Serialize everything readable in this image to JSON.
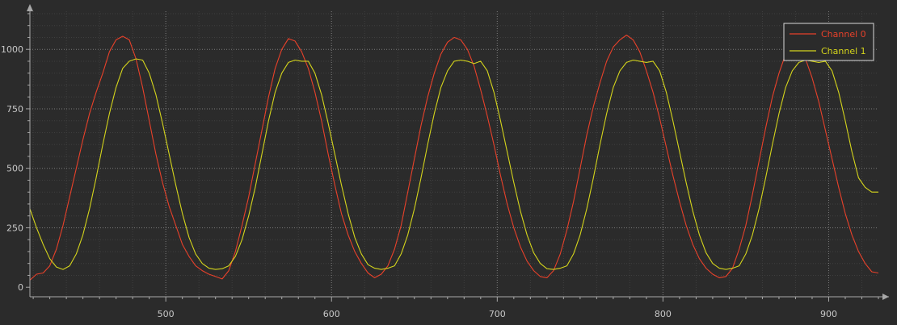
{
  "chart_data": {
    "type": "line",
    "title": "",
    "xlabel": "",
    "ylabel": "",
    "xlim": [
      418,
      930
    ],
    "ylim": [
      -40,
      1160
    ],
    "grid": true,
    "legend_position": "top-right",
    "x_ticks": [
      500,
      600,
      700,
      800,
      900
    ],
    "x_tick_labels": [
      "500",
      "600",
      "700",
      "800",
      "900"
    ],
    "y_ticks": [
      0,
      250,
      500,
      750,
      1000
    ],
    "y_tick_labels": [
      "0",
      "250",
      "500",
      "750",
      "1000"
    ],
    "series": [
      {
        "name": "Channel 0",
        "color": "#e8412a",
        "points": [
          [
            418,
            30
          ],
          [
            422,
            55
          ],
          [
            426,
            60
          ],
          [
            430,
            90
          ],
          [
            434,
            160
          ],
          [
            438,
            260
          ],
          [
            442,
            380
          ],
          [
            446,
            500
          ],
          [
            450,
            620
          ],
          [
            454,
            730
          ],
          [
            458,
            820
          ],
          [
            462,
            900
          ],
          [
            466,
            990
          ],
          [
            470,
            1040
          ],
          [
            474,
            1055
          ],
          [
            478,
            1040
          ],
          [
            482,
            960
          ],
          [
            486,
            840
          ],
          [
            490,
            700
          ],
          [
            494,
            560
          ],
          [
            498,
            440
          ],
          [
            502,
            340
          ],
          [
            506,
            260
          ],
          [
            510,
            180
          ],
          [
            514,
            130
          ],
          [
            518,
            90
          ],
          [
            522,
            70
          ],
          [
            526,
            55
          ],
          [
            530,
            45
          ],
          [
            534,
            35
          ],
          [
            538,
            70
          ],
          [
            542,
            150
          ],
          [
            546,
            260
          ],
          [
            550,
            380
          ],
          [
            554,
            520
          ],
          [
            558,
            660
          ],
          [
            562,
            800
          ],
          [
            566,
            920
          ],
          [
            570,
            1000
          ],
          [
            574,
            1045
          ],
          [
            578,
            1035
          ],
          [
            582,
            990
          ],
          [
            586,
            920
          ],
          [
            590,
            820
          ],
          [
            594,
            700
          ],
          [
            598,
            560
          ],
          [
            602,
            430
          ],
          [
            606,
            310
          ],
          [
            610,
            220
          ],
          [
            614,
            150
          ],
          [
            618,
            100
          ],
          [
            622,
            60
          ],
          [
            626,
            40
          ],
          [
            630,
            55
          ],
          [
            634,
            90
          ],
          [
            638,
            160
          ],
          [
            642,
            260
          ],
          [
            646,
            400
          ],
          [
            650,
            540
          ],
          [
            654,
            680
          ],
          [
            658,
            800
          ],
          [
            662,
            900
          ],
          [
            666,
            980
          ],
          [
            670,
            1030
          ],
          [
            674,
            1050
          ],
          [
            678,
            1040
          ],
          [
            682,
            1000
          ],
          [
            686,
            930
          ],
          [
            690,
            830
          ],
          [
            694,
            720
          ],
          [
            698,
            600
          ],
          [
            702,
            470
          ],
          [
            706,
            350
          ],
          [
            710,
            250
          ],
          [
            714,
            170
          ],
          [
            718,
            110
          ],
          [
            722,
            70
          ],
          [
            726,
            45
          ],
          [
            730,
            40
          ],
          [
            734,
            70
          ],
          [
            738,
            140
          ],
          [
            742,
            240
          ],
          [
            746,
            360
          ],
          [
            750,
            500
          ],
          [
            754,
            640
          ],
          [
            758,
            760
          ],
          [
            762,
            860
          ],
          [
            766,
            950
          ],
          [
            770,
            1010
          ],
          [
            774,
            1040
          ],
          [
            778,
            1060
          ],
          [
            782,
            1040
          ],
          [
            786,
            990
          ],
          [
            790,
            910
          ],
          [
            794,
            820
          ],
          [
            798,
            710
          ],
          [
            802,
            590
          ],
          [
            806,
            470
          ],
          [
            810,
            360
          ],
          [
            814,
            260
          ],
          [
            818,
            180
          ],
          [
            822,
            120
          ],
          [
            826,
            80
          ],
          [
            830,
            55
          ],
          [
            834,
            40
          ],
          [
            838,
            45
          ],
          [
            842,
            80
          ],
          [
            846,
            160
          ],
          [
            850,
            260
          ],
          [
            854,
            390
          ],
          [
            858,
            530
          ],
          [
            862,
            670
          ],
          [
            866,
            800
          ],
          [
            870,
            900
          ],
          [
            874,
            980
          ],
          [
            878,
            1030
          ],
          [
            882,
            1020
          ],
          [
            886,
            960
          ],
          [
            890,
            880
          ],
          [
            894,
            780
          ],
          [
            898,
            660
          ],
          [
            902,
            540
          ],
          [
            906,
            420
          ],
          [
            910,
            310
          ],
          [
            914,
            220
          ],
          [
            918,
            150
          ],
          [
            922,
            100
          ],
          [
            926,
            65
          ],
          [
            930,
            60
          ]
        ]
      },
      {
        "name": "Channel 1",
        "color": "#d4d41c",
        "points": [
          [
            418,
            330
          ],
          [
            422,
            250
          ],
          [
            426,
            180
          ],
          [
            430,
            120
          ],
          [
            434,
            85
          ],
          [
            438,
            75
          ],
          [
            442,
            90
          ],
          [
            446,
            140
          ],
          [
            450,
            220
          ],
          [
            454,
            330
          ],
          [
            458,
            460
          ],
          [
            462,
            600
          ],
          [
            466,
            730
          ],
          [
            470,
            840
          ],
          [
            474,
            920
          ],
          [
            478,
            950
          ],
          [
            482,
            960
          ],
          [
            486,
            955
          ],
          [
            490,
            900
          ],
          [
            494,
            810
          ],
          [
            498,
            690
          ],
          [
            502,
            560
          ],
          [
            506,
            430
          ],
          [
            510,
            310
          ],
          [
            514,
            210
          ],
          [
            518,
            140
          ],
          [
            522,
            100
          ],
          [
            526,
            80
          ],
          [
            530,
            75
          ],
          [
            534,
            78
          ],
          [
            538,
            90
          ],
          [
            542,
            130
          ],
          [
            546,
            200
          ],
          [
            550,
            300
          ],
          [
            554,
            420
          ],
          [
            558,
            560
          ],
          [
            562,
            700
          ],
          [
            566,
            820
          ],
          [
            570,
            900
          ],
          [
            574,
            945
          ],
          [
            578,
            955
          ],
          [
            582,
            950
          ],
          [
            586,
            950
          ],
          [
            590,
            900
          ],
          [
            594,
            810
          ],
          [
            598,
            690
          ],
          [
            602,
            560
          ],
          [
            606,
            430
          ],
          [
            610,
            310
          ],
          [
            614,
            210
          ],
          [
            618,
            140
          ],
          [
            622,
            95
          ],
          [
            626,
            80
          ],
          [
            630,
            75
          ],
          [
            634,
            80
          ],
          [
            638,
            90
          ],
          [
            642,
            140
          ],
          [
            646,
            220
          ],
          [
            650,
            330
          ],
          [
            654,
            460
          ],
          [
            658,
            600
          ],
          [
            662,
            730
          ],
          [
            666,
            840
          ],
          [
            670,
            910
          ],
          [
            674,
            950
          ],
          [
            678,
            955
          ],
          [
            682,
            950
          ],
          [
            686,
            940
          ],
          [
            690,
            950
          ],
          [
            694,
            910
          ],
          [
            698,
            820
          ],
          [
            702,
            700
          ],
          [
            706,
            570
          ],
          [
            710,
            440
          ],
          [
            714,
            320
          ],
          [
            718,
            220
          ],
          [
            722,
            145
          ],
          [
            726,
            100
          ],
          [
            730,
            78
          ],
          [
            734,
            75
          ],
          [
            738,
            80
          ],
          [
            742,
            90
          ],
          [
            746,
            140
          ],
          [
            750,
            220
          ],
          [
            754,
            330
          ],
          [
            758,
            460
          ],
          [
            762,
            600
          ],
          [
            766,
            730
          ],
          [
            770,
            840
          ],
          [
            774,
            910
          ],
          [
            778,
            945
          ],
          [
            782,
            955
          ],
          [
            786,
            950
          ],
          [
            790,
            945
          ],
          [
            794,
            950
          ],
          [
            798,
            910
          ],
          [
            802,
            820
          ],
          [
            806,
            700
          ],
          [
            810,
            570
          ],
          [
            814,
            440
          ],
          [
            818,
            320
          ],
          [
            822,
            220
          ],
          [
            826,
            145
          ],
          [
            830,
            100
          ],
          [
            834,
            80
          ],
          [
            838,
            75
          ],
          [
            842,
            80
          ],
          [
            846,
            90
          ],
          [
            850,
            140
          ],
          [
            854,
            220
          ],
          [
            858,
            330
          ],
          [
            862,
            460
          ],
          [
            866,
            600
          ],
          [
            870,
            730
          ],
          [
            874,
            840
          ],
          [
            878,
            910
          ],
          [
            882,
            945
          ],
          [
            886,
            955
          ],
          [
            890,
            950
          ],
          [
            894,
            945
          ],
          [
            898,
            950
          ],
          [
            902,
            910
          ],
          [
            906,
            820
          ],
          [
            910,
            700
          ],
          [
            914,
            570
          ],
          [
            918,
            460
          ],
          [
            922,
            420
          ],
          [
            926,
            400
          ],
          [
            930,
            400
          ]
        ]
      }
    ]
  }
}
